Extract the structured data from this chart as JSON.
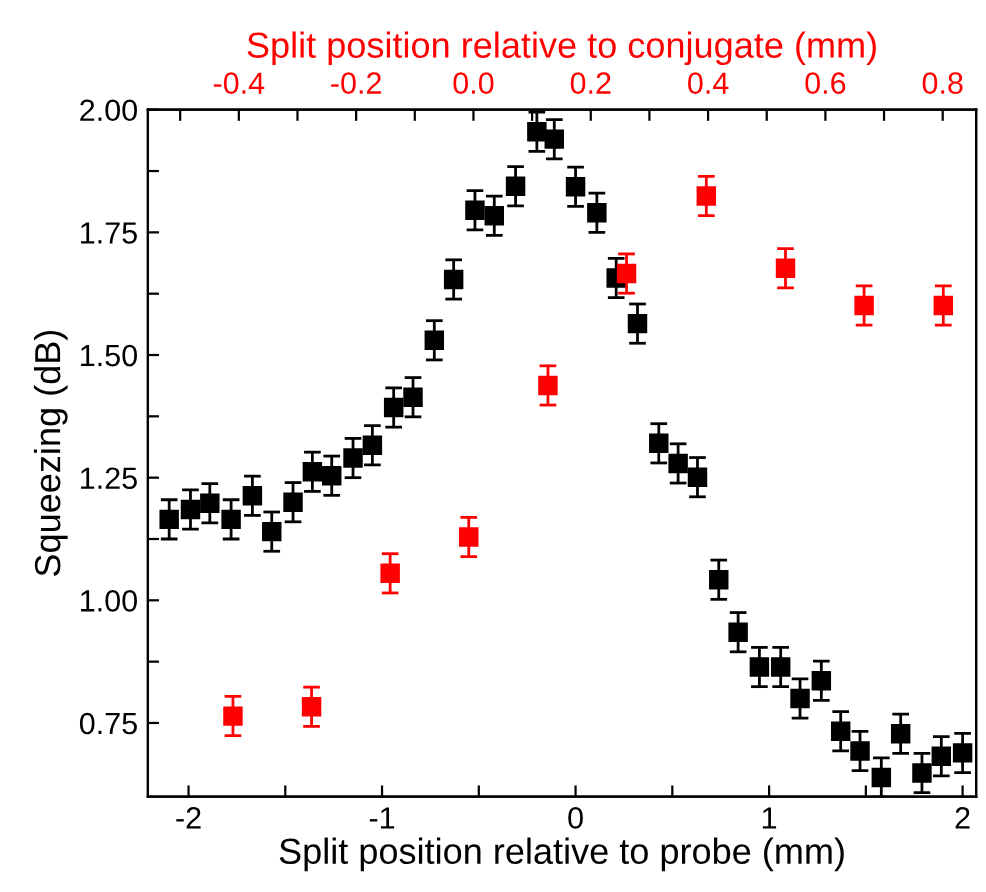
{
  "chart_data": {
    "type": "scatter",
    "xlabel": "Split position relative to probe (mm)",
    "x2label": "Split position relative to conjugate (mm)",
    "ylabel": "Squeezing (dB)",
    "xlim": [
      -2.21,
      2.07
    ],
    "xticks": [
      -2,
      {
        "value": -1.5,
        "label": null
      },
      -1,
      {
        "value": -0.5,
        "label": null
      },
      0,
      {
        "value": 0.5,
        "label": null
      },
      1,
      {
        "value": 1.5,
        "label": null
      },
      2
    ],
    "x2lim": [
      -0.555,
      0.857
    ],
    "x2ticks": [
      {
        "value": -0.5,
        "label": null
      },
      -0.4,
      {
        "value": -0.3,
        "label": null
      },
      -0.2,
      {
        "value": -0.1,
        "label": null
      },
      {
        "value": 0,
        "label": "0.0"
      },
      {
        "value": 0.1,
        "label": null
      },
      0.2,
      {
        "value": 0.3,
        "label": null
      },
      0.4,
      {
        "value": 0.5,
        "label": null
      },
      0.6,
      {
        "value": 0.7,
        "label": null
      },
      0.8
    ],
    "ylim": [
      0.6,
      2.0
    ],
    "yticks": [
      {
        "value": 0.75,
        "label": "0.75"
      },
      {
        "value": 0.875,
        "label": null
      },
      {
        "value": 1.0,
        "label": "1.00"
      },
      {
        "value": 1.125,
        "label": null
      },
      {
        "value": 1.25,
        "label": "1.25"
      },
      {
        "value": 1.375,
        "label": null
      },
      {
        "value": 1.5,
        "label": "1.50"
      },
      {
        "value": 1.625,
        "label": null
      },
      {
        "value": 1.75,
        "label": "1.75"
      },
      {
        "value": 1.875,
        "label": null
      },
      {
        "value": 2.0,
        "label": "2.00"
      }
    ],
    "marker": "square",
    "grid": false,
    "legend": false,
    "series": [
      {
        "color": "#000000",
        "x": [
          -2.1,
          -1.99,
          -1.89,
          -1.78,
          -1.67,
          -1.57,
          -1.46,
          -1.36,
          -1.26,
          -1.15,
          -1.05,
          -0.94,
          -0.84,
          -0.73,
          -0.63,
          -0.52,
          -0.42,
          -0.31,
          -0.2,
          -0.11,
          0.0,
          0.11,
          0.21,
          0.32,
          0.43,
          0.53,
          0.63,
          0.74,
          0.84,
          0.95,
          1.06,
          1.16,
          1.27,
          1.37,
          1.47,
          1.58,
          1.68,
          1.79,
          1.89,
          2.0
        ],
        "values": [
          1.165,
          1.185,
          1.198,
          1.165,
          1.213,
          1.14,
          1.2,
          1.262,
          1.254,
          1.29,
          1.316,
          1.393,
          1.414,
          1.53,
          1.654,
          1.795,
          1.784,
          1.844,
          1.955,
          1.94,
          1.843,
          1.79,
          1.657,
          1.564,
          1.32,
          1.279,
          1.251,
          1.042,
          0.935,
          0.864,
          0.864,
          0.8,
          0.836,
          0.733,
          0.693,
          0.639,
          0.728,
          0.648,
          0.682,
          0.689
        ],
        "errors": [
          0.04,
          0.04,
          0.04,
          0.04,
          0.04,
          0.04,
          0.04,
          0.04,
          0.04,
          0.04,
          0.04,
          0.04,
          0.04,
          0.04,
          0.04,
          0.04,
          0.04,
          0.04,
          0.04,
          0.04,
          0.04,
          0.04,
          0.04,
          0.04,
          0.04,
          0.04,
          0.04,
          0.04,
          0.04,
          0.04,
          0.04,
          0.04,
          0.04,
          0.04,
          0.04,
          0.04,
          0.04,
          0.04,
          0.04,
          0.04
        ]
      },
      {
        "color": "#ff0000",
        "axis": "x2",
        "x": [
          -0.41,
          -0.276,
          -0.142,
          -0.008,
          0.127,
          0.261,
          0.397,
          0.532,
          0.666,
          0.801
        ],
        "values": [
          0.764,
          0.783,
          1.055,
          1.129,
          1.438,
          1.666,
          1.824,
          1.677,
          1.601,
          1.601
        ],
        "errors": [
          0.04,
          0.04,
          0.04,
          0.04,
          0.04,
          0.04,
          0.04,
          0.04,
          0.04,
          0.04
        ]
      }
    ]
  }
}
